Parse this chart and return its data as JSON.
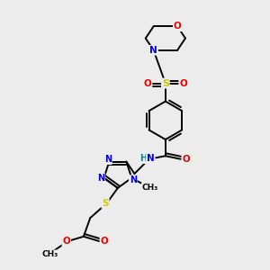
{
  "bg_color": "#ececec",
  "atom_colors": {
    "C": "#000000",
    "N": "#0000ee",
    "O": "#ee0000",
    "S": "#cccc00",
    "H": "#008888"
  },
  "bond_color": "#000000",
  "bond_width": 1.4,
  "figsize": [
    3.0,
    3.0
  ],
  "dpi": 100,
  "xlim": [
    0,
    10
  ],
  "ylim": [
    0,
    10
  ]
}
